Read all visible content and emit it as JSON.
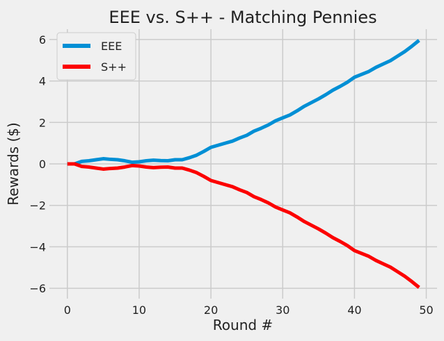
{
  "chart_data": {
    "type": "line",
    "title": "EEE vs. S++ - Matching Pennies",
    "xlabel": "Round #",
    "ylabel": "Rewards ($)",
    "xlim": [
      -2.5,
      51.5
    ],
    "ylim": [
      -6.5,
      6.5
    ],
    "xticks": [
      0,
      10,
      20,
      30,
      40,
      50
    ],
    "yticks": [
      -6,
      -4,
      -2,
      0,
      2,
      4,
      6
    ],
    "grid": true,
    "legend_position": "top-left",
    "x": [
      0,
      1,
      2,
      3,
      4,
      5,
      6,
      7,
      8,
      9,
      10,
      11,
      12,
      13,
      14,
      15,
      16,
      17,
      18,
      19,
      20,
      21,
      22,
      23,
      24,
      25,
      26,
      27,
      28,
      29,
      30,
      31,
      32,
      33,
      34,
      35,
      36,
      37,
      38,
      39,
      40,
      41,
      42,
      43,
      44,
      45,
      46,
      47,
      48,
      49
    ],
    "series": [
      {
        "name": "EEE",
        "color": "#008fd5",
        "values": [
          0,
          0,
          0.12,
          0.15,
          0.2,
          0.25,
          0.22,
          0.2,
          0.15,
          0.08,
          0.1,
          0.15,
          0.18,
          0.16,
          0.15,
          0.2,
          0.2,
          0.3,
          0.42,
          0.6,
          0.8,
          0.9,
          1.0,
          1.1,
          1.25,
          1.38,
          1.58,
          1.72,
          1.88,
          2.08,
          2.22,
          2.36,
          2.56,
          2.78,
          2.96,
          3.14,
          3.34,
          3.56,
          3.74,
          3.94,
          4.18,
          4.32,
          4.46,
          4.66,
          4.82,
          4.98,
          5.2,
          5.42,
          5.68,
          5.96
        ]
      },
      {
        "name": "S++",
        "color": "#fc0000",
        "values": [
          0,
          0,
          -0.12,
          -0.15,
          -0.2,
          -0.25,
          -0.22,
          -0.2,
          -0.15,
          -0.08,
          -0.1,
          -0.15,
          -0.18,
          -0.16,
          -0.15,
          -0.2,
          -0.2,
          -0.3,
          -0.42,
          -0.6,
          -0.8,
          -0.9,
          -1.0,
          -1.1,
          -1.25,
          -1.38,
          -1.58,
          -1.72,
          -1.88,
          -2.08,
          -2.22,
          -2.36,
          -2.56,
          -2.78,
          -2.96,
          -3.14,
          -3.34,
          -3.56,
          -3.74,
          -3.94,
          -4.18,
          -4.32,
          -4.46,
          -4.66,
          -4.82,
          -4.98,
          -5.2,
          -5.42,
          -5.68,
          -5.96
        ]
      }
    ]
  }
}
